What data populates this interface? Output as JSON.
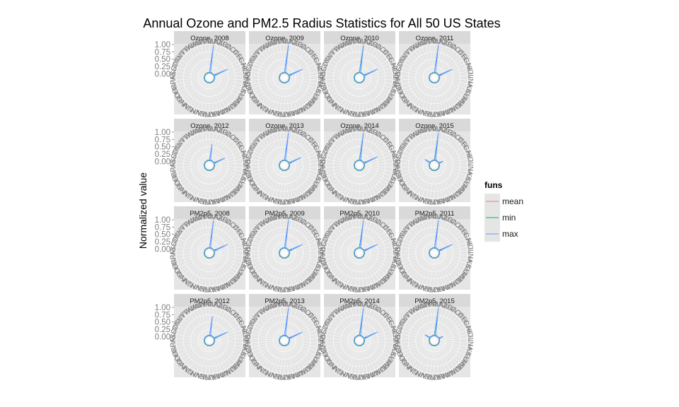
{
  "chart_data": {
    "type": "radar",
    "title": "Annual Ozone and PM2.5 Radius Statistics for All 50 US States",
    "ylabel": "Normalized value",
    "legend": {
      "title": "funs",
      "position": "right",
      "entries": [
        {
          "label": "mean",
          "color": "#F8766D"
        },
        {
          "label": "min",
          "color": "#00BA38"
        },
        {
          "label": "max",
          "color": "#619CFF"
        }
      ]
    },
    "radial_axis": {
      "range": [
        0,
        1
      ],
      "ticks": [
        "1.00",
        "0.75",
        "0.50",
        "0.25",
        "0.00"
      ]
    },
    "grid": true,
    "facet_grid": {
      "rows": 4,
      "cols": 4
    },
    "states": [
      "AL",
      "AK",
      "AZ",
      "AR",
      "CA",
      "CO",
      "CT",
      "DE",
      "FL",
      "GA",
      "HI",
      "ID",
      "IL",
      "IN",
      "IA",
      "KS",
      "KY",
      "LA",
      "ME",
      "MD",
      "MA",
      "MI",
      "MN",
      "MS",
      "MO",
      "MT",
      "NE",
      "NV",
      "NH",
      "NJ",
      "NM",
      "NY",
      "NC",
      "ND",
      "OH",
      "OK",
      "OR",
      "PA",
      "RI",
      "SC",
      "SD",
      "TN",
      "TX",
      "UT",
      "VT",
      "VA",
      "WA",
      "WV",
      "WI",
      "WY"
    ],
    "panels": [
      {
        "label": "Ozone, 2008",
        "series": [
          {
            "name": "mean",
            "peaks": [
              {
                "state": "AZ",
                "value": 0.06
              },
              {
                "state": "GA",
                "value": 0.14
              }
            ]
          },
          {
            "name": "min",
            "peaks": [
              {
                "state": "AZ",
                "value": 0.05
              },
              {
                "state": "GA",
                "value": 0.12
              }
            ]
          },
          {
            "name": "max",
            "peaks": [
              {
                "state": "AK",
                "value": 1.0
              },
              {
                "state": "GA",
                "value": 0.55
              }
            ]
          }
        ]
      },
      {
        "label": "Ozone, 2009",
        "series": [
          {
            "name": "mean",
            "peaks": [
              {
                "state": "AZ",
                "value": 0.06
              },
              {
                "state": "GA",
                "value": 0.14
              }
            ]
          },
          {
            "name": "min",
            "peaks": [
              {
                "state": "AZ",
                "value": 0.05
              },
              {
                "state": "GA",
                "value": 0.12
              }
            ]
          },
          {
            "name": "max",
            "peaks": [
              {
                "state": "AK",
                "value": 1.0
              },
              {
                "state": "GA",
                "value": 0.55
              }
            ]
          }
        ]
      },
      {
        "label": "Ozone, 2010",
        "series": [
          {
            "name": "mean",
            "peaks": [
              {
                "state": "AZ",
                "value": 0.06
              },
              {
                "state": "GA",
                "value": 0.14
              }
            ]
          },
          {
            "name": "min",
            "peaks": [
              {
                "state": "AK",
                "value": 0.9
              },
              {
                "state": "GA",
                "value": 0.12
              }
            ]
          },
          {
            "name": "max",
            "peaks": [
              {
                "state": "AK",
                "value": 1.0
              },
              {
                "state": "GA",
                "value": 0.55
              }
            ]
          }
        ]
      },
      {
        "label": "Ozone, 2011",
        "series": [
          {
            "name": "mean",
            "peaks": [
              {
                "state": "AZ",
                "value": 0.06
              },
              {
                "state": "GA",
                "value": 0.14
              }
            ]
          },
          {
            "name": "min",
            "peaks": [
              {
                "state": "AZ",
                "value": 0.05
              },
              {
                "state": "GA",
                "value": 0.12
              }
            ]
          },
          {
            "name": "max",
            "peaks": [
              {
                "state": "AK",
                "value": 1.0
              },
              {
                "state": "GA",
                "value": 0.55
              }
            ]
          }
        ]
      },
      {
        "label": "Ozone, 2012",
        "series": [
          {
            "name": "mean",
            "peaks": [
              {
                "state": "AZ",
                "value": 0.06
              },
              {
                "state": "GA",
                "value": 0.14
              }
            ]
          },
          {
            "name": "min",
            "peaks": [
              {
                "state": "AZ",
                "value": 0.05
              },
              {
                "state": "GA",
                "value": 0.12
              }
            ]
          },
          {
            "name": "max",
            "peaks": [
              {
                "state": "AK",
                "value": 0.6
              },
              {
                "state": "GA",
                "value": 0.45
              }
            ]
          }
        ]
      },
      {
        "label": "Ozone, 2013",
        "series": [
          {
            "name": "mean",
            "peaks": [
              {
                "state": "AZ",
                "value": 0.06
              },
              {
                "state": "GA",
                "value": 0.14
              }
            ]
          },
          {
            "name": "min",
            "peaks": [
              {
                "state": "AZ",
                "value": 0.05
              },
              {
                "state": "GA",
                "value": 0.12
              }
            ]
          },
          {
            "name": "max",
            "peaks": [
              {
                "state": "AK",
                "value": 1.0
              },
              {
                "state": "GA",
                "value": 0.5
              }
            ]
          }
        ]
      },
      {
        "label": "Ozone, 2014",
        "series": [
          {
            "name": "mean",
            "peaks": [
              {
                "state": "AZ",
                "value": 0.06
              },
              {
                "state": "GA",
                "value": 0.14
              }
            ]
          },
          {
            "name": "min",
            "peaks": [
              {
                "state": "AK",
                "value": 0.8
              },
              {
                "state": "GA",
                "value": 0.12
              }
            ]
          },
          {
            "name": "max",
            "peaks": [
              {
                "state": "AK",
                "value": 1.0
              },
              {
                "state": "GA",
                "value": 0.55
              }
            ]
          }
        ]
      },
      {
        "label": "Ozone, 2015",
        "series": [
          {
            "name": "mean",
            "peaks": [
              {
                "state": "AZ",
                "value": 0.08
              },
              {
                "state": "GA",
                "value": 0.14
              }
            ]
          },
          {
            "name": "min",
            "peaks": [
              {
                "state": "AK",
                "value": 0.85
              },
              {
                "state": "GA",
                "value": 0.12
              }
            ]
          },
          {
            "name": "max",
            "peaks": [
              {
                "state": "AK",
                "value": 1.0
              },
              {
                "state": "GA",
                "value": 0.2
              },
              {
                "state": "TX",
                "value": 0.25
              }
            ]
          }
        ]
      },
      {
        "label": "PM2p5, 2008",
        "series": [
          {
            "name": "mean",
            "peaks": [
              {
                "state": "AZ",
                "value": 0.06
              },
              {
                "state": "GA",
                "value": 0.14
              }
            ]
          },
          {
            "name": "min",
            "peaks": [
              {
                "state": "AZ",
                "value": 0.05
              },
              {
                "state": "GA",
                "value": 0.12
              }
            ]
          },
          {
            "name": "max",
            "peaks": [
              {
                "state": "AK",
                "value": 1.0
              },
              {
                "state": "GA",
                "value": 0.55
              }
            ]
          }
        ]
      },
      {
        "label": "PM2p5, 2009",
        "series": [
          {
            "name": "mean",
            "peaks": [
              {
                "state": "AZ",
                "value": 0.06
              },
              {
                "state": "GA",
                "value": 0.14
              }
            ]
          },
          {
            "name": "min",
            "peaks": [
              {
                "state": "AZ",
                "value": 0.05
              },
              {
                "state": "GA",
                "value": 0.12
              }
            ]
          },
          {
            "name": "max",
            "peaks": [
              {
                "state": "AK",
                "value": 1.0
              },
              {
                "state": "GA",
                "value": 0.55
              }
            ]
          }
        ]
      },
      {
        "label": "PM2p5, 2010",
        "series": [
          {
            "name": "mean",
            "peaks": [
              {
                "state": "AZ",
                "value": 0.06
              },
              {
                "state": "GA",
                "value": 0.14
              }
            ]
          },
          {
            "name": "min",
            "peaks": [
              {
                "state": "AK",
                "value": 0.7
              },
              {
                "state": "GA",
                "value": 0.12
              }
            ]
          },
          {
            "name": "max",
            "peaks": [
              {
                "state": "AK",
                "value": 1.0
              },
              {
                "state": "GA",
                "value": 0.55
              }
            ]
          }
        ]
      },
      {
        "label": "PM2p5, 2011",
        "series": [
          {
            "name": "mean",
            "peaks": [
              {
                "state": "AZ",
                "value": 0.06
              },
              {
                "state": "GA",
                "value": 0.14
              }
            ]
          },
          {
            "name": "min",
            "peaks": [
              {
                "state": "AZ",
                "value": 0.05
              },
              {
                "state": "GA",
                "value": 0.12
              }
            ]
          },
          {
            "name": "max",
            "peaks": [
              {
                "state": "AK",
                "value": 1.0
              },
              {
                "state": "GA",
                "value": 0.55
              }
            ]
          }
        ]
      },
      {
        "label": "PM2p5, 2012",
        "series": [
          {
            "name": "mean",
            "peaks": [
              {
                "state": "AZ",
                "value": 0.06
              },
              {
                "state": "GA",
                "value": 0.14
              }
            ]
          },
          {
            "name": "min",
            "peaks": [
              {
                "state": "AZ",
                "value": 0.05
              },
              {
                "state": "GA",
                "value": 0.12
              }
            ]
          },
          {
            "name": "max",
            "peaks": [
              {
                "state": "AK",
                "value": 0.7
              },
              {
                "state": "GA",
                "value": 0.55
              }
            ]
          }
        ]
      },
      {
        "label": "PM2p5, 2013",
        "series": [
          {
            "name": "mean",
            "peaks": [
              {
                "state": "AZ",
                "value": 0.06
              },
              {
                "state": "GA",
                "value": 0.14
              }
            ]
          },
          {
            "name": "min",
            "peaks": [
              {
                "state": "AZ",
                "value": 0.05
              },
              {
                "state": "GA",
                "value": 0.12
              }
            ]
          },
          {
            "name": "max",
            "peaks": [
              {
                "state": "AK",
                "value": 1.0
              },
              {
                "state": "GA",
                "value": 0.55
              }
            ]
          }
        ]
      },
      {
        "label": "PM2p5, 2014",
        "series": [
          {
            "name": "mean",
            "peaks": [
              {
                "state": "AZ",
                "value": 0.06
              },
              {
                "state": "GA",
                "value": 0.14
              }
            ]
          },
          {
            "name": "min",
            "peaks": [
              {
                "state": "AK",
                "value": 0.75
              },
              {
                "state": "GA",
                "value": 0.12
              }
            ]
          },
          {
            "name": "max",
            "peaks": [
              {
                "state": "AK",
                "value": 1.0
              },
              {
                "state": "GA",
                "value": 0.55
              }
            ]
          }
        ]
      },
      {
        "label": "PM2p5, 2015",
        "series": [
          {
            "name": "mean",
            "peaks": [
              {
                "state": "AZ",
                "value": 0.08
              },
              {
                "state": "GA",
                "value": 0.14
              }
            ]
          },
          {
            "name": "min",
            "peaks": [
              {
                "state": "AK",
                "value": 0.85
              },
              {
                "state": "GA",
                "value": 0.12
              }
            ]
          },
          {
            "name": "max",
            "peaks": [
              {
                "state": "AK",
                "value": 1.0
              },
              {
                "state": "GA",
                "value": 0.2
              },
              {
                "state": "TX",
                "value": 0.25
              }
            ]
          }
        ]
      }
    ]
  }
}
